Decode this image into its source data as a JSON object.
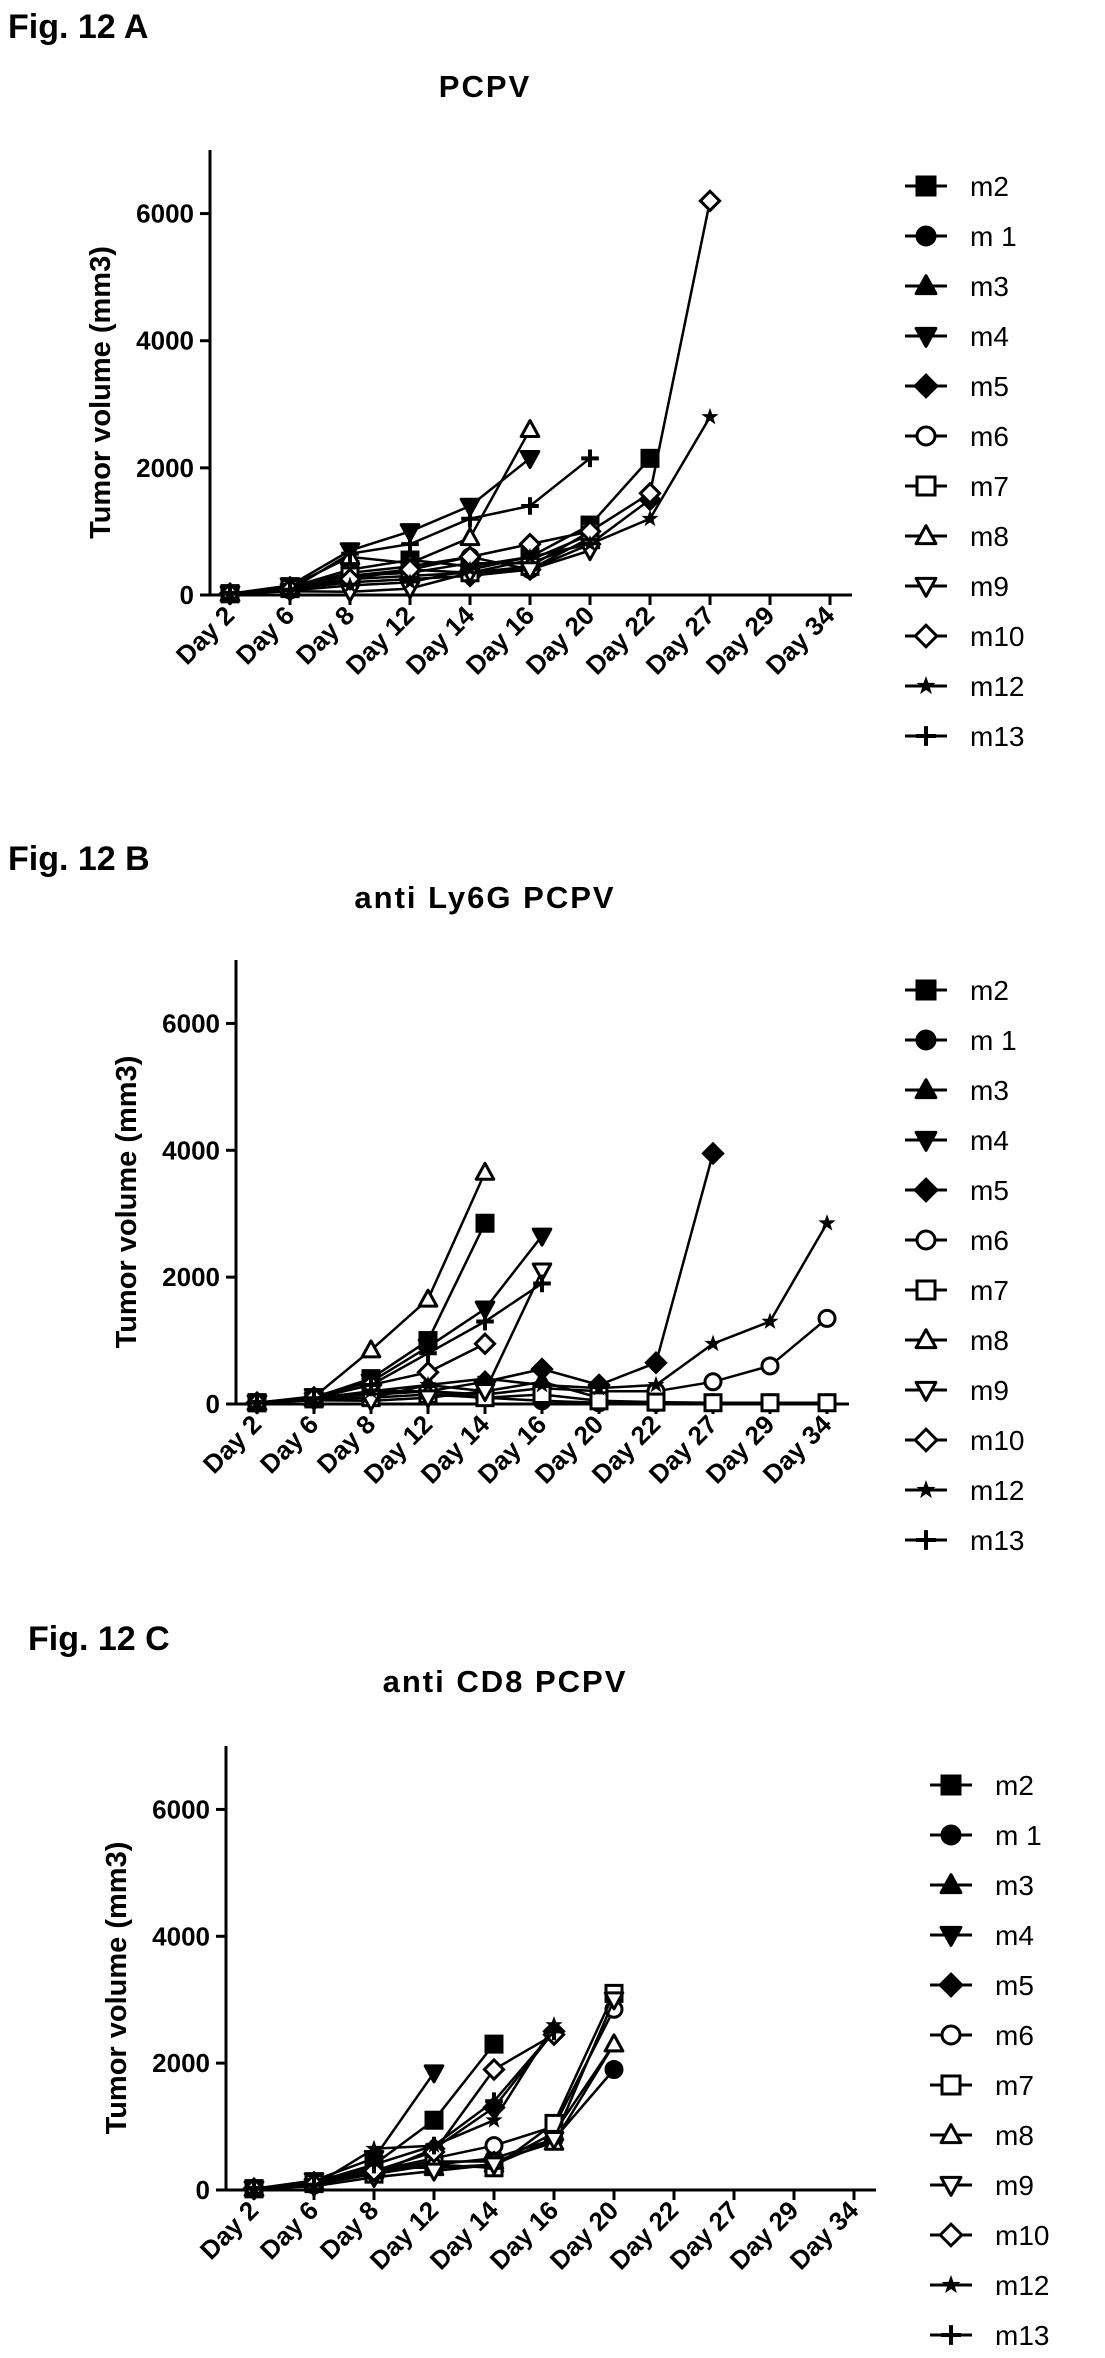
{
  "chart_data": [
    {
      "type": "line",
      "figure_label": "Fig. 12 A",
      "title": "PCPV",
      "ylabel": "Tumor volume (mm3)",
      "xlabel": "",
      "categories": [
        "Day 2",
        "Day 6",
        "Day 8",
        "Day 12",
        "Day 14",
        "Day 16",
        "Day 20",
        "Day 22",
        "Day 27",
        "Day 29",
        "Day 34"
      ],
      "ylim": [
        0,
        7000
      ],
      "yticks": [
        "0",
        "2000",
        "4000",
        "6000"
      ],
      "legend_position": "right",
      "series": [
        {
          "name": "m2",
          "marker": "square-filled",
          "values": [
            20,
            120,
            400,
            550,
            450,
            600,
            1100,
            2150,
            null,
            null,
            null
          ]
        },
        {
          "name": "m 1",
          "marker": "circle-filled",
          "values": [
            20,
            80,
            250,
            300,
            350,
            550,
            950,
            null,
            null,
            null,
            null
          ]
        },
        {
          "name": "m3",
          "marker": "triangle-up-filled",
          "values": [
            20,
            100,
            300,
            350,
            500,
            500,
            850,
            null,
            null,
            null,
            null
          ]
        },
        {
          "name": "m4",
          "marker": "triangle-down-filled",
          "values": [
            20,
            150,
            700,
            1000,
            1400,
            2150,
            null,
            null,
            null,
            null,
            null
          ]
        },
        {
          "name": "m5",
          "marker": "diamond-filled",
          "values": [
            20,
            90,
            200,
            250,
            300,
            400,
            800,
            1500,
            null,
            null,
            null
          ]
        },
        {
          "name": "m6",
          "marker": "circle-open",
          "values": [
            20,
            110,
            350,
            450,
            600,
            400,
            900,
            null,
            null,
            null,
            null
          ]
        },
        {
          "name": "m7",
          "marker": "square-open",
          "values": [
            20,
            100,
            300,
            400,
            350,
            450,
            1000,
            null,
            null,
            null,
            null
          ]
        },
        {
          "name": "m8",
          "marker": "triangle-up-open",
          "values": [
            20,
            130,
            600,
            500,
            900,
            2600,
            null,
            null,
            null,
            null,
            null
          ]
        },
        {
          "name": "m9",
          "marker": "triangle-down-open",
          "values": [
            20,
            60,
            50,
            100,
            350,
            400,
            700,
            null,
            null,
            null,
            null
          ]
        },
        {
          "name": "m10",
          "marker": "diamond-open",
          "values": [
            20,
            90,
            250,
            400,
            600,
            800,
            1000,
            1600,
            6200,
            null,
            null
          ]
        },
        {
          "name": "m12",
          "marker": "star",
          "values": [
            20,
            70,
            150,
            200,
            400,
            600,
            800,
            1200,
            2800,
            null,
            null
          ]
        },
        {
          "name": "m13",
          "marker": "plus",
          "values": [
            20,
            80,
            650,
            800,
            1200,
            1400,
            2150,
            null,
            null,
            null,
            null
          ]
        }
      ]
    },
    {
      "type": "line",
      "figure_label": "Fig. 12 B",
      "title": "anti Ly6G PCPV",
      "ylabel": "Tumor volume (mm3)",
      "xlabel": "",
      "categories": [
        "Day 2",
        "Day 6",
        "Day 8",
        "Day 12",
        "Day 14",
        "Day 16",
        "Day 20",
        "Day 22",
        "Day 27",
        "Day 29",
        "Day 34"
      ],
      "ylim": [
        0,
        7000
      ],
      "yticks": [
        "0",
        "2000",
        "4000",
        "6000"
      ],
      "legend_position": "right",
      "series": [
        {
          "name": "m2",
          "marker": "square-filled",
          "values": [
            20,
            100,
            400,
            1000,
            2850,
            null,
            null,
            null,
            null,
            null,
            null
          ]
        },
        {
          "name": "m 1",
          "marker": "circle-filled",
          "values": [
            20,
            90,
            200,
            200,
            100,
            50,
            20,
            20,
            20,
            20,
            20
          ]
        },
        {
          "name": "m3",
          "marker": "triangle-up-filled",
          "values": [
            20,
            80,
            100,
            300,
            200,
            350,
            100,
            null,
            null,
            null,
            null
          ]
        },
        {
          "name": "m4",
          "marker": "triangle-down-filled",
          "values": [
            20,
            120,
            350,
            900,
            1500,
            2650,
            null,
            null,
            null,
            null,
            null
          ]
        },
        {
          "name": "m5",
          "marker": "diamond-filled",
          "values": [
            20,
            100,
            150,
            200,
            350,
            550,
            300,
            650,
            3950,
            null,
            null
          ]
        },
        {
          "name": "m6",
          "marker": "circle-open",
          "values": [
            20,
            90,
            150,
            200,
            150,
            250,
            200,
            200,
            350,
            600,
            1350
          ]
        },
        {
          "name": "m7",
          "marker": "square-open",
          "values": [
            20,
            80,
            100,
            150,
            100,
            150,
            50,
            30,
            20,
            20,
            20
          ]
        },
        {
          "name": "m8",
          "marker": "triangle-up-open",
          "values": [
            20,
            110,
            850,
            1650,
            3650,
            null,
            null,
            null,
            null,
            null,
            null
          ]
        },
        {
          "name": "m9",
          "marker": "triangle-down-open",
          "values": [
            20,
            60,
            50,
            100,
            200,
            2100,
            null,
            null,
            null,
            null,
            null
          ]
        },
        {
          "name": "m10",
          "marker": "diamond-open",
          "values": [
            20,
            100,
            300,
            500,
            950,
            null,
            null,
            null,
            null,
            null,
            null
          ]
        },
        {
          "name": "m12",
          "marker": "star",
          "values": [
            20,
            70,
            200,
            300,
            400,
            300,
            250,
            300,
            950,
            1300,
            2850
          ]
        },
        {
          "name": "m13",
          "marker": "plus",
          "values": [
            20,
            90,
            300,
            800,
            1300,
            1900,
            null,
            null,
            null,
            null,
            null
          ]
        }
      ]
    },
    {
      "type": "line",
      "figure_label": "Fig. 12 C",
      "title": "anti CD8 PCPV",
      "ylabel": "Tumor volume (mm3)",
      "xlabel": "",
      "categories": [
        "Day 2",
        "Day 6",
        "Day 8",
        "Day 12",
        "Day 14",
        "Day 16",
        "Day 20",
        "Day 22",
        "Day 27",
        "Day 29",
        "Day 34"
      ],
      "ylim": [
        0,
        7000
      ],
      "yticks": [
        "0",
        "2000",
        "4000",
        "6000"
      ],
      "legend_position": "right",
      "series": [
        {
          "name": "m2",
          "marker": "square-filled",
          "values": [
            20,
            120,
            400,
            1100,
            2300,
            null,
            null,
            null,
            null,
            null,
            null
          ]
        },
        {
          "name": "m 1",
          "marker": "circle-filled",
          "values": [
            20,
            80,
            300,
            400,
            500,
            800,
            1900,
            null,
            null,
            null,
            null
          ]
        },
        {
          "name": "m3",
          "marker": "triangle-up-filled",
          "values": [
            20,
            100,
            350,
            350,
            400,
            900,
            2300,
            null,
            null,
            null,
            null
          ]
        },
        {
          "name": "m4",
          "marker": "triangle-down-filled",
          "values": [
            20,
            150,
            500,
            1850,
            null,
            null,
            null,
            null,
            null,
            null,
            null
          ]
        },
        {
          "name": "m5",
          "marker": "diamond-filled",
          "values": [
            20,
            90,
            250,
            650,
            1300,
            2500,
            null,
            null,
            null,
            null,
            null
          ]
        },
        {
          "name": "m6",
          "marker": "circle-open",
          "values": [
            20,
            110,
            300,
            500,
            700,
            1000,
            2850,
            null,
            null,
            null,
            null
          ]
        },
        {
          "name": "m7",
          "marker": "square-open",
          "values": [
            20,
            100,
            250,
            400,
            350,
            1050,
            3100,
            null,
            null,
            null,
            null
          ]
        },
        {
          "name": "m8",
          "marker": "triangle-up-open",
          "values": [
            20,
            130,
            300,
            450,
            450,
            750,
            2300,
            null,
            null,
            null,
            null
          ]
        },
        {
          "name": "m9",
          "marker": "triangle-down-open",
          "values": [
            20,
            60,
            200,
            300,
            400,
            800,
            3000,
            null,
            null,
            null,
            null
          ]
        },
        {
          "name": "m10",
          "marker": "diamond-open",
          "values": [
            20,
            90,
            300,
            600,
            1900,
            2450,
            null,
            null,
            null,
            null,
            null
          ]
        },
        {
          "name": "m12",
          "marker": "star",
          "values": [
            20,
            70,
            650,
            700,
            1100,
            2600,
            null,
            null,
            null,
            null,
            null
          ]
        },
        {
          "name": "m13",
          "marker": "plus",
          "values": [
            20,
            80,
            400,
            700,
            1400,
            2500,
            null,
            null,
            null,
            null,
            null
          ]
        }
      ]
    }
  ]
}
